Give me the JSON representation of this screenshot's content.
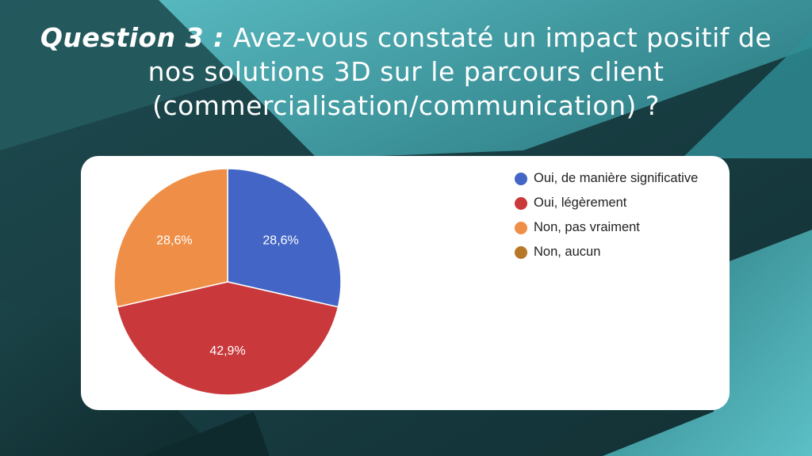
{
  "title": {
    "question_number": "Question 3 :",
    "question_text": " Avez-vous constaté un impact positif de nos solutions 3D sur le parcours client (commercialisation/communication) ?"
  },
  "colors": {
    "background_dark": "#16353a",
    "background_teal": "#4aa8b0",
    "card": "#ffffff"
  },
  "chart_data": {
    "type": "pie",
    "categories": [
      "Oui, de manière significative",
      "Oui, légèrement",
      "Non, pas vraiment",
      "Non, aucun"
    ],
    "values": [
      28.6,
      42.9,
      28.6,
      0
    ],
    "slice_labels": [
      "28,6%",
      "42,9%",
      "28,6%",
      ""
    ],
    "colors": [
      "#4366c6",
      "#c9393c",
      "#ef8f47",
      "#b87829"
    ],
    "legend_position": "right",
    "start_angle_deg": 90,
    "direction": "clockwise"
  }
}
